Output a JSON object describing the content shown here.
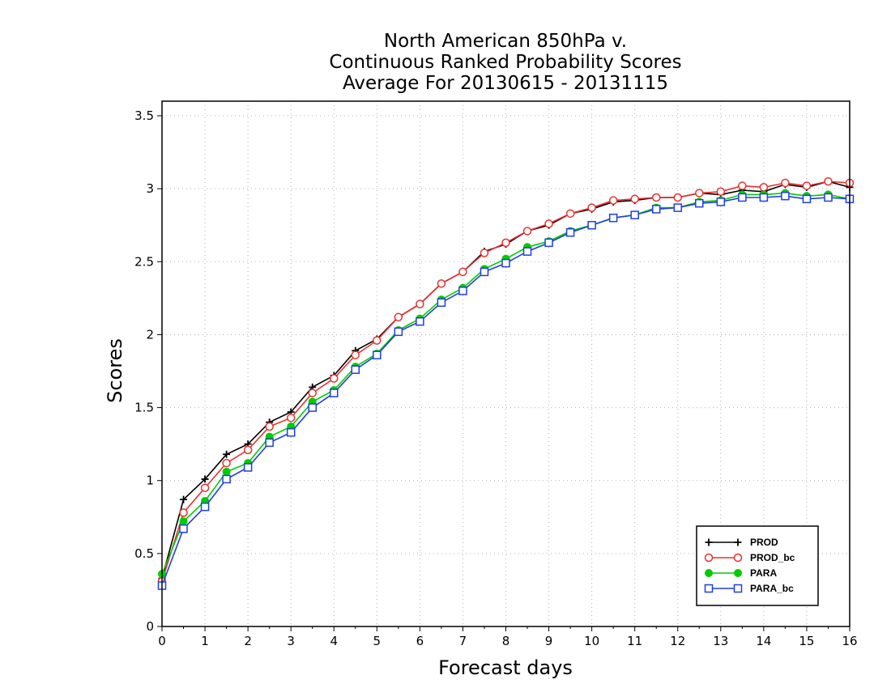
{
  "chart_data": {
    "type": "line",
    "title": [
      "North American 850hPa v.",
      "Continuous Ranked Probability Scores",
      "Average For 20130615 - 20131115"
    ],
    "xlabel": "Forecast days",
    "ylabel": "Scores",
    "xlim": [
      0,
      16
    ],
    "ylim": [
      0,
      3.6
    ],
    "xticks": [
      0,
      1,
      2,
      3,
      4,
      5,
      6,
      7,
      8,
      9,
      10,
      11,
      12,
      13,
      14,
      15,
      16
    ],
    "xtick_labels": [
      "0",
      "1",
      "2",
      "3",
      "4",
      "5",
      "6",
      "7",
      "8",
      "9",
      "10",
      "11",
      "12",
      "13",
      "14",
      "15",
      "16"
    ],
    "yticks": [
      0,
      0.5,
      1,
      1.5,
      2,
      2.5,
      3,
      3.5
    ],
    "ytick_labels": [
      "0",
      "0.5",
      "1",
      "1.5",
      "2",
      "2.5",
      "3",
      "3.5"
    ],
    "grid": true,
    "legend_position": "bottom-right",
    "x": [
      0,
      0.5,
      1,
      1.5,
      2,
      2.5,
      3,
      3.5,
      4,
      4.5,
      5,
      5.5,
      6,
      6.5,
      7,
      7.5,
      8,
      8.5,
      9,
      9.5,
      10,
      10.5,
      11,
      11.5,
      12,
      12.5,
      13,
      13.5,
      14,
      14.5,
      15,
      15.5,
      16
    ],
    "series": [
      {
        "name": "PROD",
        "color": "#000000",
        "marker": "plus",
        "values": [
          0.33,
          0.87,
          1.01,
          1.18,
          1.25,
          1.4,
          1.47,
          1.64,
          1.72,
          1.89,
          1.97,
          2.12,
          2.21,
          2.35,
          2.43,
          2.57,
          2.62,
          2.71,
          2.75,
          2.83,
          2.86,
          2.91,
          2.92,
          2.94,
          2.94,
          2.97,
          2.96,
          2.99,
          2.98,
          3.03,
          3.01,
          3.05,
          3.01
        ]
      },
      {
        "name": "PROD_bc",
        "color": "#e83030",
        "marker": "circle-open",
        "values": [
          0.31,
          0.78,
          0.95,
          1.12,
          1.21,
          1.37,
          1.43,
          1.6,
          1.7,
          1.86,
          1.96,
          2.12,
          2.21,
          2.35,
          2.43,
          2.56,
          2.63,
          2.71,
          2.76,
          2.83,
          2.87,
          2.92,
          2.93,
          2.94,
          2.94,
          2.97,
          2.98,
          3.02,
          3.01,
          3.04,
          3.02,
          3.05,
          3.04
        ]
      },
      {
        "name": "PARA",
        "color": "#00cc00",
        "marker": "circle-filled",
        "values": [
          0.36,
          0.72,
          0.86,
          1.06,
          1.12,
          1.3,
          1.37,
          1.54,
          1.62,
          1.78,
          1.87,
          2.03,
          2.11,
          2.24,
          2.32,
          2.45,
          2.52,
          2.6,
          2.64,
          2.71,
          2.75,
          2.8,
          2.82,
          2.87,
          2.87,
          2.91,
          2.92,
          2.96,
          2.96,
          2.97,
          2.95,
          2.96,
          2.93
        ]
      },
      {
        "name": "PARA_bc",
        "color": "#1f3fe0",
        "marker": "square-open",
        "values": [
          0.28,
          0.67,
          0.82,
          1.01,
          1.09,
          1.26,
          1.33,
          1.5,
          1.6,
          1.76,
          1.86,
          2.02,
          2.09,
          2.22,
          2.3,
          2.43,
          2.49,
          2.57,
          2.63,
          2.7,
          2.75,
          2.8,
          2.82,
          2.86,
          2.87,
          2.9,
          2.91,
          2.94,
          2.94,
          2.95,
          2.93,
          2.94,
          2.93
        ]
      }
    ]
  }
}
